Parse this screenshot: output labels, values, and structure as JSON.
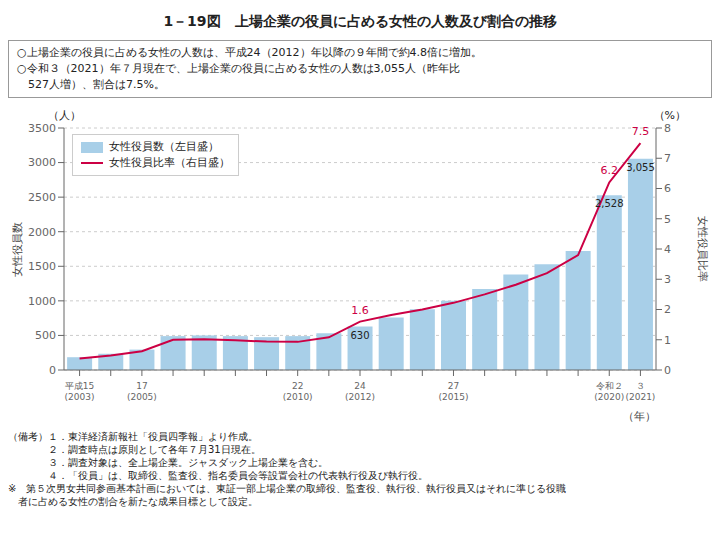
{
  "chart_data": {
    "type": "bar",
    "title": "1－19図　上場企業の役員に占める女性の人数及び割合の推移",
    "subtitle": [
      "○上場企業の役員に占める女性の人数は、平成24（2012）年以降の９年間で約4.8倍に増加。",
      "○令和３（2021）年７月現在で、上場企業の役員に占める女性の人数は3,055人（昨年比",
      "　527人増）、割合は7.5%。"
    ],
    "categories": [
      "平成15\n(2003)",
      null,
      "17\n(2005)",
      null,
      null,
      null,
      null,
      "22\n(2010)",
      null,
      "24\n(2012)",
      null,
      null,
      "27\n(2015)",
      null,
      null,
      null,
      null,
      "令和２\n(2020)",
      "３\n(2021)"
    ],
    "series": [
      {
        "name": "女性役員数（左目盛）",
        "type": "bar",
        "color": "#a8cfe8",
        "values": [
          185,
          235,
          295,
          490,
          500,
          490,
          475,
          490,
          530,
          630,
          760,
          880,
          1000,
          1170,
          1380,
          1530,
          1720,
          2528,
          3055
        ],
        "value_labels": [
          null,
          null,
          null,
          null,
          null,
          null,
          null,
          null,
          null,
          "630",
          null,
          null,
          null,
          null,
          null,
          null,
          null,
          "2,528",
          "3,055"
        ]
      },
      {
        "name": "女性役員比率（右目盛）",
        "type": "line",
        "axis": "y2",
        "color": "#cc0044",
        "values": [
          0.38,
          0.48,
          0.62,
          1.0,
          1.02,
          0.98,
          0.94,
          0.93,
          1.08,
          1.6,
          1.82,
          2.0,
          2.22,
          2.5,
          2.82,
          3.2,
          3.8,
          6.2,
          7.5
        ],
        "value_labels": [
          null,
          null,
          null,
          null,
          null,
          null,
          null,
          null,
          null,
          "1.6",
          null,
          null,
          null,
          null,
          null,
          null,
          null,
          "6.2",
          "7.5"
        ]
      }
    ],
    "ylabel": "女性役員数",
    "ylabel_unit": "（人）",
    "y2label": "女性役員比率",
    "y2label_unit": "（%）",
    "xlabel": "（年）",
    "ylim": [
      0,
      3500
    ],
    "yticks": [
      0,
      500,
      1000,
      1500,
      2000,
      2500,
      3000,
      3500
    ],
    "y2lim": [
      0,
      8
    ],
    "y2ticks": [
      0,
      1,
      2,
      3,
      4,
      5,
      6,
      7,
      8
    ],
    "grid": true,
    "legend": "upper left",
    "notes": [
      "（備考）１．東洋経済新報社「役員四季報」より作成。",
      "　　　　２．調査時点は原則として各年７月31日現在。",
      "　　　　３．調査対象は、全上場企業。ジャスダック上場企業を含む。",
      "　　　　４．「役員」は、取締役、監査役、指名委員会等設置会社の代表執行役及び執行役。",
      "※　第５次男女共同参画基本計画においては、東証一部上場企業の取締役、監査役、執行役、執行役員又はそれに準じる役職",
      "　者に占める女性の割合を新たな成果目標として設定。"
    ]
  }
}
